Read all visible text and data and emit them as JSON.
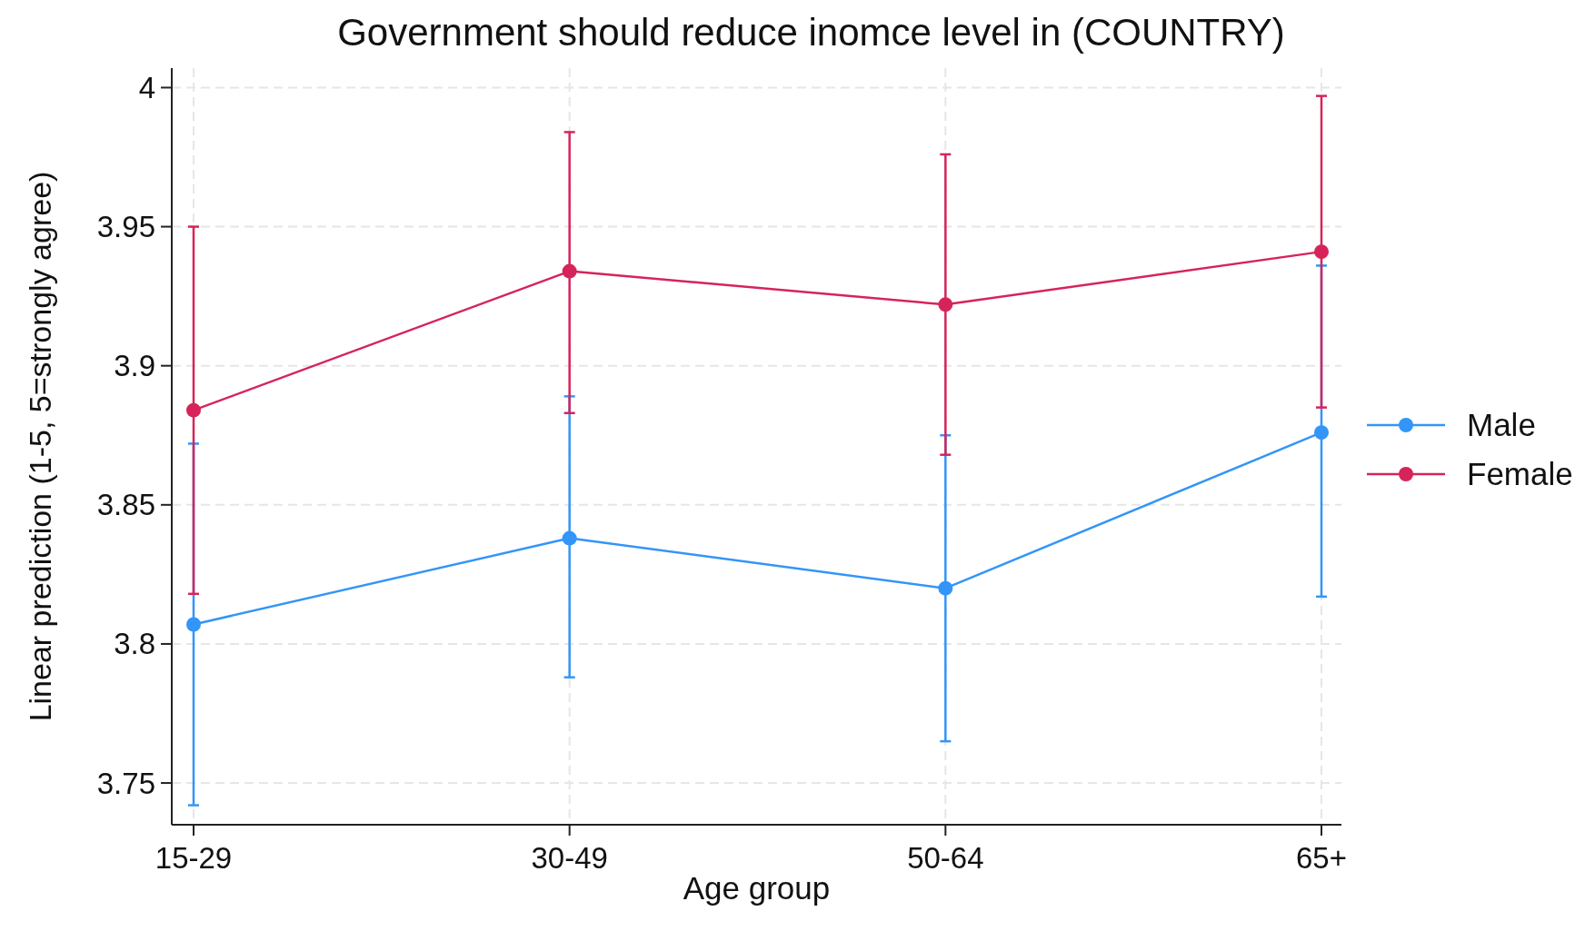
{
  "chart_data": {
    "type": "line",
    "title": "Government should reduce inomce level in (COUNTRY)",
    "xlabel": "Age group",
    "ylabel": "Linear prediction (1-5, 5=strongly agree)",
    "categories": [
      "15-29",
      "30-49",
      "50-64",
      "65+"
    ],
    "series": [
      {
        "name": "Male",
        "color": "#3395f7",
        "values": [
          3.807,
          3.838,
          3.82,
          3.876
        ],
        "errors": [
          [
            3.742,
            3.872
          ],
          [
            3.788,
            3.889
          ],
          [
            3.765,
            3.875
          ],
          [
            3.817,
            3.936
          ]
        ]
      },
      {
        "name": "Female",
        "color": "#d6245a",
        "values": [
          3.884,
          3.934,
          3.922,
          3.941
        ],
        "errors": [
          [
            3.818,
            3.95
          ],
          [
            3.883,
            3.984
          ],
          [
            3.868,
            3.976
          ],
          [
            3.885,
            3.997
          ]
        ]
      }
    ],
    "ylim": [
      3.735,
      4.007
    ],
    "yticks": [
      3.75,
      3.8,
      3.85,
      3.9,
      3.95,
      4
    ],
    "grid": true,
    "legend": "right",
    "marker": "circle"
  }
}
